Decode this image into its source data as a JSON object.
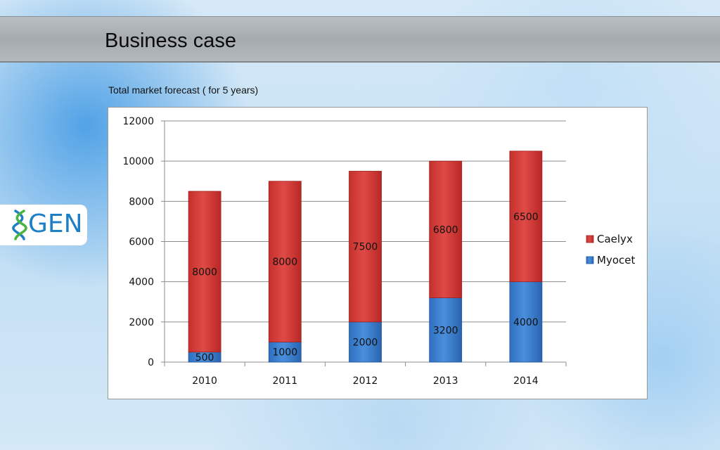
{
  "slide": {
    "title": "Business case",
    "caption": "Total market forecast ( for 5 years)"
  },
  "logo": {
    "text": "GEN",
    "color": "#1f7fc4"
  },
  "chart_data": {
    "type": "bar",
    "stacked": true,
    "title": "",
    "xlabel": "",
    "ylabel": "",
    "categories": [
      "2010",
      "2011",
      "2012",
      "2013",
      "2014"
    ],
    "ylim": [
      0,
      12000
    ],
    "yticks": [
      0,
      2000,
      4000,
      6000,
      8000,
      10000,
      12000
    ],
    "grid": true,
    "legend_position": "right",
    "series": [
      {
        "name": "Myocet",
        "values": [
          500,
          1000,
          2000,
          3200,
          4000
        ],
        "color": "#3b7fcf"
      },
      {
        "name": "Caelyx",
        "values": [
          8000,
          8000,
          7500,
          6800,
          6500
        ],
        "color": "#d43a37"
      }
    ],
    "legend_order": [
      "Caelyx",
      "Myocet"
    ]
  }
}
